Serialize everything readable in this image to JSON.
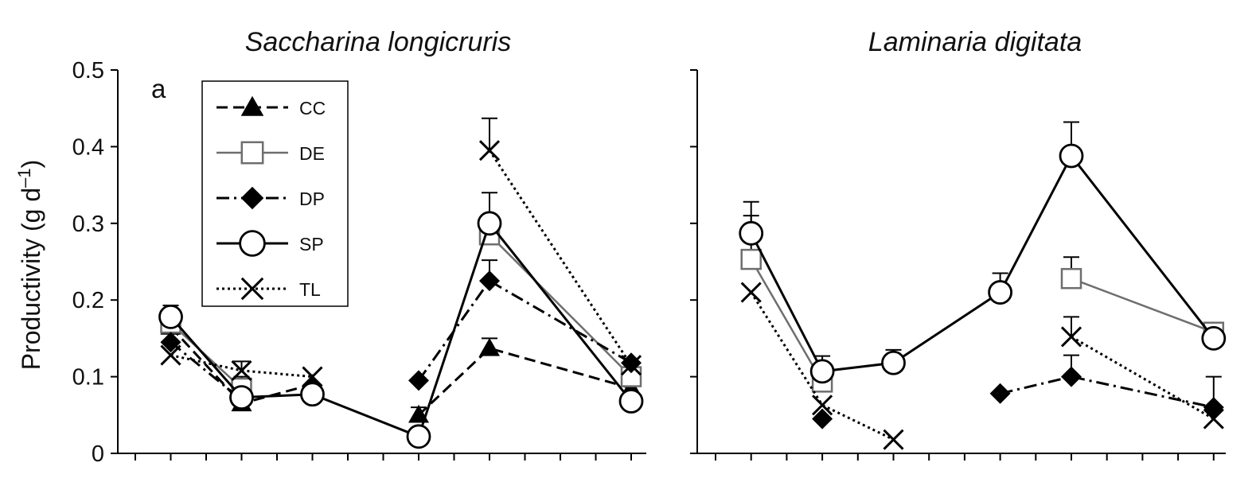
{
  "chart_data": [
    {
      "type": "line",
      "title": "Saccharina longicruris",
      "panel_label": "a",
      "ylabel": "Productivity (g d",
      "ylabel_sup": "–1",
      "ylabel_close": ")",
      "ylim": [
        0,
        0.5
      ],
      "yticks": [
        0,
        0.1,
        0.2,
        0.3,
        0.4,
        0.5
      ],
      "ytick_labels": [
        "0",
        "0.1",
        "0.2",
        "0.3",
        "0.4",
        "0.5"
      ],
      "x_slots": 15,
      "legend": {
        "placement": "upper-left inset",
        "entries": [
          "CC",
          "DE",
          "DP",
          "SP",
          "TL"
        ]
      },
      "series": [
        {
          "name": "CC",
          "color": "#000000",
          "segments": [
            [
              [
                1,
                0.165
              ],
              [
                3,
                0.065
              ],
              [
                5,
                0.09
              ]
            ],
            [
              [
                8,
                0.05
              ],
              [
                10,
                0.137
              ],
              [
                14,
                0.085
              ]
            ]
          ],
          "errors": [
            [
              8,
              0.06
            ],
            [
              10,
              0.15
            ]
          ]
        },
        {
          "name": "DE",
          "color": "#6e6e6e",
          "segments": [
            [
              [
                1,
                0.17
              ],
              [
                3,
                0.085
              ]
            ],
            [
              [
                10,
                0.285
              ],
              [
                14,
                0.1
              ]
            ]
          ],
          "errors": [
            [
              1,
              0.185
            ],
            [
              3,
              0.1
            ],
            [
              10,
              0.3
            ],
            [
              14,
              0.11
            ]
          ]
        },
        {
          "name": "DP",
          "color": "#000000",
          "segments": [
            [
              [
                1,
                0.145
              ],
              [
                3,
                0.07
              ]
            ],
            [
              [
                8,
                0.095
              ],
              [
                10,
                0.225
              ],
              [
                14,
                0.118
              ]
            ]
          ],
          "errors": [
            [
              10,
              0.252
            ]
          ]
        },
        {
          "name": "SP",
          "color": "#000000",
          "segments": [
            [
              [
                1,
                0.178
              ],
              [
                3,
                0.073
              ],
              [
                5,
                0.077
              ],
              [
                8,
                0.022
              ],
              [
                10,
                0.3
              ],
              [
                14,
                0.068
              ]
            ]
          ],
          "errors": [
            [
              1,
              0.193
            ],
            [
              10,
              0.34
            ]
          ]
        },
        {
          "name": "TL",
          "color": "#000000",
          "segments": [
            [
              [
                1,
                0.128
              ],
              [
                3,
                0.108
              ],
              [
                5,
                0.1
              ]
            ],
            [
              [
                10,
                0.395
              ],
              [
                14,
                0.115
              ]
            ]
          ],
          "errors": [
            [
              3,
              0.12
            ],
            [
              10,
              0.437
            ]
          ]
        }
      ]
    },
    {
      "type": "line",
      "title": "Laminaria digitata",
      "ylim": [
        0,
        0.5
      ],
      "yticks": [
        0,
        0.1,
        0.2,
        0.3,
        0.4,
        0.5
      ],
      "x_slots": 15,
      "series": [
        {
          "name": "CC",
          "color": "#000000",
          "segments": [],
          "errors": []
        },
        {
          "name": "DE",
          "color": "#6e6e6e",
          "segments": [
            [
              [
                1,
                0.253
              ],
              [
                3,
                0.093
              ]
            ],
            [
              [
                10,
                0.228
              ],
              [
                14,
                0.158
              ]
            ]
          ],
          "errors": [
            [
              1,
              0.31
            ],
            [
              3,
              0.11
            ],
            [
              10,
              0.256
            ],
            [
              14,
              0.168
            ]
          ]
        },
        {
          "name": "DP",
          "color": "#000000",
          "segments": [
            [
              [
                3,
                0.045
              ]
            ],
            [
              [
                8,
                0.078
              ],
              [
                10,
                0.1
              ],
              [
                14,
                0.06
              ]
            ]
          ],
          "errors": [
            [
              10,
              0.128
            ],
            [
              14,
              0.1
            ]
          ]
        },
        {
          "name": "SP",
          "color": "#000000",
          "segments": [
            [
              [
                1,
                0.287
              ],
              [
                3,
                0.107
              ],
              [
                5,
                0.118
              ],
              [
                8,
                0.21
              ],
              [
                10,
                0.388
              ],
              [
                14,
                0.15
              ]
            ]
          ],
          "errors": [
            [
              1,
              0.328
            ],
            [
              3,
              0.127
            ],
            [
              5,
              0.135
            ],
            [
              8,
              0.235
            ],
            [
              10,
              0.432
            ]
          ]
        },
        {
          "name": "TL",
          "color": "#000000",
          "segments": [
            [
              [
                1,
                0.21
              ],
              [
                3,
                0.063
              ],
              [
                5,
                0.018
              ]
            ],
            [
              [
                10,
                0.152
              ],
              [
                14,
                0.045
              ]
            ]
          ],
          "errors": [
            [
              10,
              0.178
            ]
          ]
        }
      ]
    }
  ]
}
